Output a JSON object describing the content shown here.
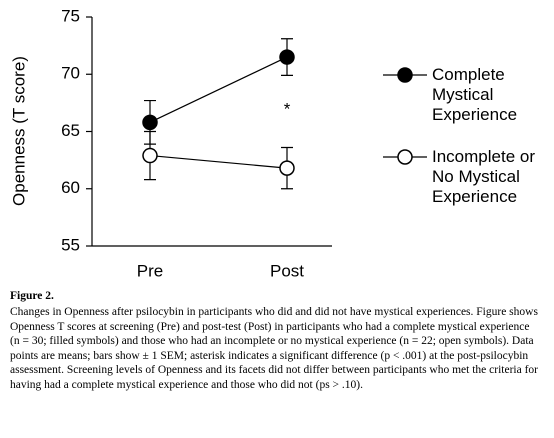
{
  "chart_data": {
    "type": "line",
    "ylabel": "Openness (T score)",
    "categories": [
      "Pre",
      "Post"
    ],
    "series": [
      {
        "name": "Complete Mystical Experience",
        "color": "#000000",
        "filled": true,
        "values": [
          65.8,
          71.5
        ],
        "errors": [
          1.9,
          1.6
        ]
      },
      {
        "name": "Incomplete or No Mystical Experience",
        "color": "#000000",
        "filled": false,
        "values": [
          62.9,
          61.8
        ],
        "errors": [
          2.1,
          1.8
        ]
      }
    ],
    "ylim": [
      55,
      75
    ],
    "yticks": [
      55,
      60,
      65,
      70,
      75
    ],
    "grid": false,
    "annotation": "*"
  },
  "caption": {
    "label": "Figure 2.",
    "text": "Changes in Openness after psilocybin in participants who did and did not have mystical experiences. Figure shows Openness T scores at screening (Pre) and post-test (Post) in participants who had a complete mystical experience (n = 30; filled symbols) and those who had an incomplete or no mystical experience (n = 22; open symbols). Data points are means; bars show ± 1 SEM; asterisk indicates a significant difference (p < .001) at the post-psilocybin assessment. Screening levels of Openness and its facets did not differ between participants who met the criteria for having had a complete mystical experience and those who did not (ps > .10)."
  }
}
